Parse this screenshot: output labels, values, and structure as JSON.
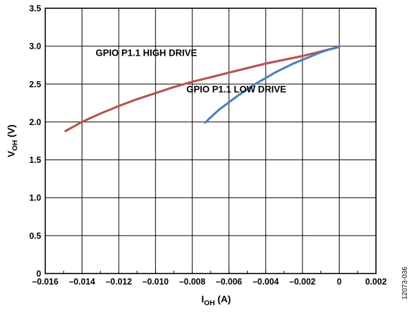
{
  "chart_data": {
    "type": "line",
    "xlabel": {
      "main": "I",
      "sub": "OH",
      "unit": " (A)"
    },
    "ylabel": {
      "main": "V",
      "sub": "OH",
      "unit": " (V)"
    },
    "xlim": [
      -0.016,
      0.002
    ],
    "ylim": [
      0,
      3.5
    ],
    "x_ticks": [
      -0.016,
      -0.014,
      -0.012,
      -0.01,
      -0.008,
      -0.006,
      -0.004,
      -0.002,
      0,
      0.002
    ],
    "x_tick_labels": [
      "–0.016",
      "–0.014",
      "–0.012",
      "–0.010",
      "–0.008",
      "–0.006",
      "–0.004",
      "–0.002",
      "0",
      "0.002"
    ],
    "x_minor_step": 0.001,
    "y_ticks": [
      0,
      0.5,
      1.0,
      1.5,
      2.0,
      2.5,
      3.0,
      3.5
    ],
    "y_tick_labels": [
      "0",
      "0.5",
      "1.0",
      "1.5",
      "2.0",
      "2.5",
      "3.0",
      "3.5"
    ],
    "grid": true,
    "series": [
      {
        "name": "GPIO P1.1 HIGH DRIVE",
        "color": "#b9534f",
        "x": [
          -0.0149,
          -0.014,
          -0.013,
          -0.012,
          -0.011,
          -0.01,
          -0.009,
          -0.008,
          -0.007,
          -0.006,
          -0.005,
          -0.004,
          -0.003,
          -0.002,
          -0.001,
          0
        ],
        "y": [
          1.88,
          2.0,
          2.11,
          2.21,
          2.3,
          2.38,
          2.46,
          2.53,
          2.59,
          2.65,
          2.71,
          2.77,
          2.82,
          2.87,
          2.93,
          2.99
        ]
      },
      {
        "name": "GPIO P1.1 LOW DRIVE",
        "color": "#4f81bd",
        "x": [
          -0.0073,
          -0.007,
          -0.0065,
          -0.006,
          -0.0055,
          -0.005,
          -0.0045,
          -0.004,
          -0.0035,
          -0.003,
          -0.0025,
          -0.002,
          -0.0015,
          -0.001,
          -0.0005,
          0
        ],
        "y": [
          1.99,
          2.06,
          2.17,
          2.26,
          2.35,
          2.43,
          2.51,
          2.58,
          2.65,
          2.71,
          2.77,
          2.82,
          2.87,
          2.92,
          2.96,
          2.99
        ]
      }
    ],
    "annotations": [
      {
        "text": "GPIO P1.1 HIGH DRIVE",
        "x": -0.0105,
        "y": 2.87,
        "series": 0
      },
      {
        "text": "GPIO P1.1 LOW DRIVE",
        "x": -0.0056,
        "y": 2.39,
        "series": 1
      }
    ],
    "figure_id": "12073-036"
  }
}
